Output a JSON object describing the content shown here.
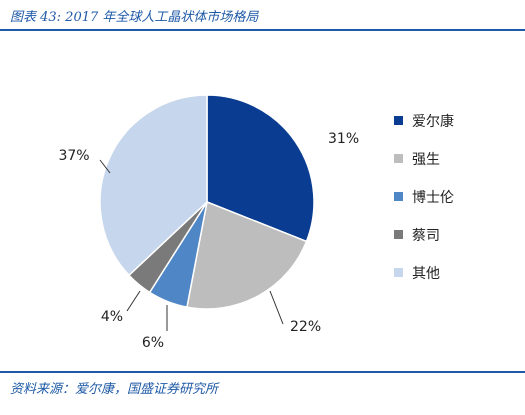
{
  "header": {
    "title": "图表 43: 2017 年全球人工晶状体市场格局"
  },
  "footer": {
    "source": "资料来源：爱尔康，国盛证券研究所"
  },
  "chart_data": {
    "type": "pie",
    "categories": [
      "爱尔康",
      "强生",
      "博士伦",
      "蔡司",
      "其他"
    ],
    "values": [
      31,
      22,
      6,
      4,
      37
    ],
    "labels": [
      "31%",
      "22%",
      "6%",
      "4%",
      "37%"
    ],
    "colors": [
      "#0a3d91",
      "#bdbdbd",
      "#4f86c6",
      "#7a7a7a",
      "#c6d6ec"
    ],
    "legend_position": "right"
  }
}
